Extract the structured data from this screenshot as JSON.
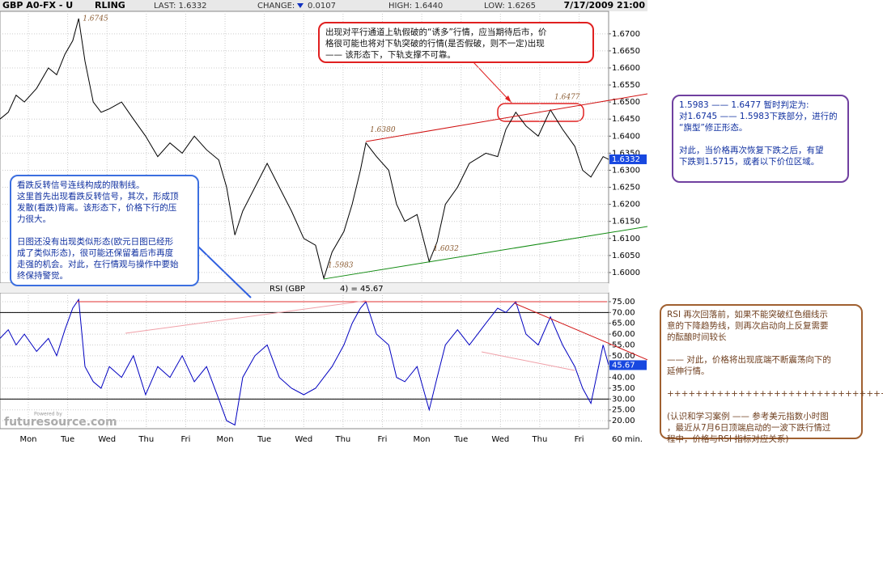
{
  "header": {
    "symbol": "GBP A0-FX - U",
    "symbol_tail": "RLING",
    "last": "LAST: 1.6332",
    "change_label": "CHANGE:",
    "change": "0.0107",
    "high": "HIGH: 1.6440",
    "low": "LOW: 1.6265",
    "datetime": "7/17/2009 21:00"
  },
  "chart_data": [
    {
      "type": "line",
      "color": "#000000",
      "xlim": [
        -0.72,
        14.75
      ],
      "ylim": [
        1.5969,
        1.6766
      ],
      "x": [
        -0.72,
        -0.51,
        -0.31,
        -0.1,
        0.21,
        0.51,
        0.72,
        0.93,
        1.13,
        1.28,
        1.44,
        1.65,
        1.85,
        2.06,
        2.37,
        2.67,
        2.98,
        3.29,
        3.6,
        3.91,
        4.22,
        4.53,
        4.84,
        5.04,
        5.25,
        5.45,
        5.76,
        6.07,
        6.38,
        6.69,
        7.0,
        7.3,
        7.51,
        7.72,
        8.02,
        8.23,
        8.44,
        8.58,
        8.85,
        9.16,
        9.36,
        9.57,
        9.88,
        10.19,
        10.39,
        10.6,
        10.91,
        11.21,
        11.63,
        11.93,
        12.14,
        12.39,
        12.65,
        12.96,
        13.27,
        13.58,
        13.89,
        14.09,
        14.3,
        14.61,
        14.75
      ],
      "values": [
        1.645,
        1.647,
        1.652,
        1.65,
        1.654,
        1.66,
        1.658,
        1.664,
        1.668,
        1.6745,
        1.662,
        1.65,
        1.647,
        1.648,
        1.65,
        1.645,
        1.64,
        1.634,
        1.638,
        1.635,
        1.64,
        1.636,
        1.633,
        1.625,
        1.611,
        1.618,
        1.625,
        1.632,
        1.625,
        1.618,
        1.61,
        1.608,
        1.5983,
        1.606,
        1.612,
        1.62,
        1.63,
        1.638,
        1.634,
        1.63,
        1.62,
        1.615,
        1.617,
        1.6032,
        1.609,
        1.62,
        1.625,
        1.632,
        1.635,
        1.634,
        1.642,
        1.647,
        1.643,
        1.64,
        1.6477,
        1.642,
        1.637,
        1.63,
        1.628,
        1.634,
        1.6332
      ],
      "yticks": [
        {
          "value": 1.6,
          "label": "1.6000"
        },
        {
          "value": 1.605,
          "label": "1.6050"
        },
        {
          "value": 1.61,
          "label": "1.6100"
        },
        {
          "value": 1.615,
          "label": "1.6150"
        },
        {
          "value": 1.62,
          "label": "1.6200"
        },
        {
          "value": 1.625,
          "label": "1.6250"
        },
        {
          "value": 1.63,
          "label": "1.6300"
        },
        {
          "value": 1.635,
          "label": "1.6350"
        },
        {
          "value": 1.64,
          "label": "1.6400"
        },
        {
          "value": 1.645,
          "label": "1.6450"
        },
        {
          "value": 1.65,
          "label": "1.6500"
        },
        {
          "value": 1.655,
          "label": "1.6550"
        },
        {
          "value": 1.66,
          "label": "1.6600"
        },
        {
          "value": 1.665,
          "label": "1.6650"
        },
        {
          "value": 1.67,
          "label": "1.6700"
        }
      ],
      "current": {
        "value": 1.6332,
        "label": "1.6332"
      },
      "grid": true,
      "annotations": [
        {
          "label": "1.6745",
          "x": 1.28,
          "y": 1.6745
        },
        {
          "label": "1.6380",
          "x": 8.58,
          "y": 1.638
        },
        {
          "label": "1.5983",
          "x": 7.51,
          "y": 1.5983
        },
        {
          "label": "1.6032",
          "x": 10.19,
          "y": 1.6032
        },
        {
          "label": "1.6477",
          "x": 13.27,
          "y": 1.6477
        }
      ],
      "trendlines": [
        {
          "x": [
            8.58,
            15.74
          ],
          "y": [
            1.6384,
            1.6524
          ],
          "color": "#d01010"
        },
        {
          "x": [
            7.51,
            15.74
          ],
          "y": [
            1.5981,
            1.6135
          ],
          "color": "#108a10"
        }
      ]
    },
    {
      "type": "line",
      "color": "#0000c0",
      "title": "RSI (GBP",
      "title_tail": "4) = 45.67",
      "xlim": [
        -0.72,
        14.75
      ],
      "ylim": [
        16.3,
        79.1
      ],
      "x": [
        -0.72,
        -0.51,
        -0.31,
        -0.1,
        0.21,
        0.51,
        0.72,
        0.93,
        1.13,
        1.28,
        1.44,
        1.65,
        1.85,
        2.06,
        2.37,
        2.67,
        2.98,
        3.29,
        3.6,
        3.91,
        4.22,
        4.53,
        4.84,
        5.04,
        5.25,
        5.45,
        5.76,
        6.07,
        6.38,
        6.69,
        7.0,
        7.3,
        7.51,
        7.72,
        8.02,
        8.23,
        8.44,
        8.58,
        8.85,
        9.16,
        9.36,
        9.57,
        9.88,
        10.19,
        10.39,
        10.6,
        10.91,
        11.21,
        11.63,
        11.93,
        12.14,
        12.39,
        12.65,
        12.96,
        13.27,
        13.58,
        13.89,
        14.09,
        14.3,
        14.61,
        14.75
      ],
      "values": [
        58,
        62,
        55,
        60,
        52,
        58,
        50,
        62,
        72,
        76,
        45,
        38,
        35,
        45,
        40,
        50,
        32,
        45,
        40,
        50,
        38,
        45,
        30,
        20,
        18,
        40,
        50,
        55,
        40,
        35,
        32,
        35,
        40,
        45,
        55,
        65,
        72,
        75,
        60,
        55,
        40,
        38,
        45,
        25,
        40,
        55,
        62,
        55,
        65,
        72,
        70,
        75,
        60,
        55,
        68,
        55,
        45,
        35,
        28,
        55,
        45.67
      ],
      "yticks": [
        {
          "value": 20,
          "label": "20.00"
        },
        {
          "value": 25,
          "label": "25.00"
        },
        {
          "value": 30,
          "label": "30.00"
        },
        {
          "value": 35,
          "label": "35.00"
        },
        {
          "value": 40,
          "label": "40.00"
        },
        {
          "value": 45,
          "label": "45.00"
        },
        {
          "value": 50,
          "label": "50.00"
        },
        {
          "value": 55,
          "label": "55.00"
        },
        {
          "value": 60,
          "label": "60.00"
        },
        {
          "value": 65,
          "label": "65.00"
        },
        {
          "value": 70,
          "label": "70.00"
        },
        {
          "value": 75,
          "label": "75.00"
        }
      ],
      "current": {
        "value": 45.67,
        "label": "45.67"
      },
      "levels": [
        70,
        30
      ],
      "grid": true,
      "trendlines": [
        {
          "x": [
            1.23,
            14.71
          ],
          "y": [
            75,
            75
          ],
          "color": "#e03030"
        },
        {
          "x": [
            2.47,
            8.58
          ],
          "y": [
            60.4,
            75.4
          ],
          "color": "#f0a0a8"
        },
        {
          "x": [
            12.35,
            15.74
          ],
          "y": [
            74.3,
            48.1
          ],
          "color": "#d01010"
        },
        {
          "x": [
            11.52,
            13.89
          ],
          "y": [
            51.8,
            43.2
          ],
          "color": "#f0a0a8"
        }
      ],
      "xticks": [
        {
          "value": 0,
          "label": "Mon"
        },
        {
          "value": 1,
          "label": "Tue"
        },
        {
          "value": 2,
          "label": "Wed"
        },
        {
          "value": 3,
          "label": "Thu"
        },
        {
          "value": 4,
          "label": "Fri"
        },
        {
          "value": 5,
          "label": "Mon"
        },
        {
          "value": 6,
          "label": "Tue"
        },
        {
          "value": 7,
          "label": "Wed"
        },
        {
          "value": 8,
          "label": "Thu"
        },
        {
          "value": 9,
          "label": "Fri"
        },
        {
          "value": 10,
          "label": "Mon"
        },
        {
          "value": 11,
          "label": "Tue"
        },
        {
          "value": 12,
          "label": "Wed"
        },
        {
          "value": 13,
          "label": "Thu"
        },
        {
          "value": 14,
          "label": "Fri"
        }
      ],
      "xlabel": "60 min."
    }
  ],
  "watermark": {
    "small": "Powered by",
    "brand": "futuresource.com"
  },
  "notes": {
    "red": {
      "lines": [
        "出现对平行通道上轨假破的“诱多”行情，应当期待后市，价",
        "格很可能也将对下轨突破的行情(是否假破，则不一定)出现",
        "—— 该形态下，下轨支撑不可靠。"
      ]
    },
    "blue": {
      "p1": [
        "看跌反转信号连线构成的限制线。",
        "这里首先出现看跌反转信号，其次，形成顶",
        "发散(看跌)背离。该形态下，价格下行的压",
        "力很大。"
      ],
      "p2": [
        "日图还没有出现类似形态(欧元日图已经形",
        "成了类似形态)，很可能还保留着后市再度",
        "走强的机会。对此，在行情观与操作中要始",
        "终保持警觉。"
      ]
    },
    "purple": {
      "p1": [
        "1.5983 —— 1.6477 暂时判定为:",
        "对1.6745 —— 1.5983下跌部分，进行的",
        "“旗型”修正形态。"
      ],
      "p2": [
        "对此，当价格再次恢复下跌之后，有望",
        "下跌到1.5715，或者以下价位区域。"
      ]
    },
    "brown": {
      "p1": [
        "RSI 再次回落前，如果不能突破红色细线示",
        "意的下降趋势线，则再次启动向上反复需要",
        "的酝酿时间较长"
      ],
      "p2": [
        "—— 对此，价格将出现底端不断震荡向下的",
        "延伸行情。"
      ],
      "sep": "+++++++++++++++++++++++++++++++++++++++",
      "p3": [
        "(认识和学习案例 —— 参考美元指数小时图",
        "，最近从7月6日顶端启动的一波下跌行情过",
        "程中，价格与RSI 指标对应关系)"
      ]
    }
  }
}
